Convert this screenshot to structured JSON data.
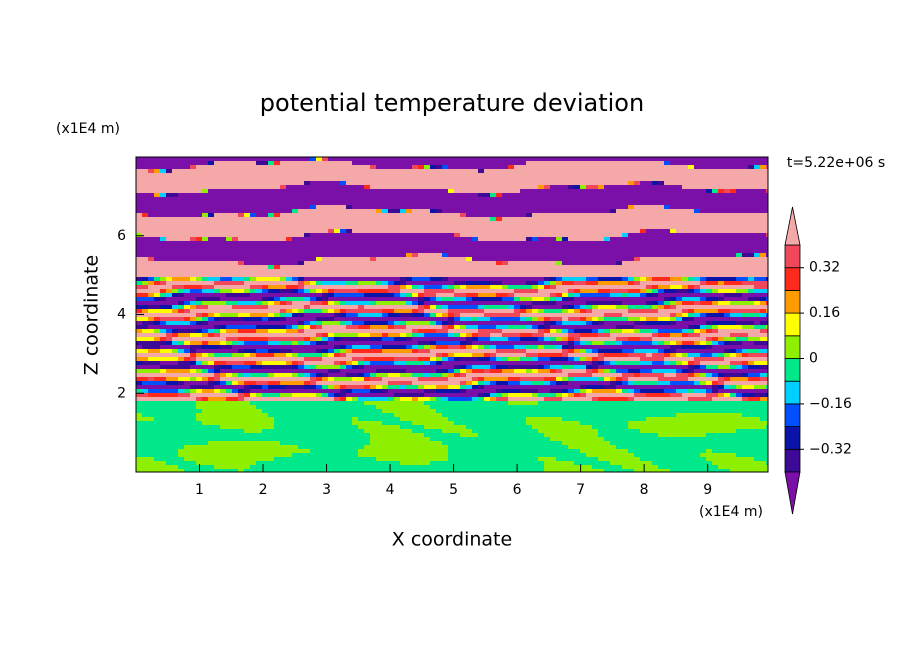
{
  "chart_data": {
    "type": "contour",
    "title": "potential temperature deviation",
    "x_label": "X coordinate",
    "y_label": "Z coordinate",
    "x_unit": "(x1E4 m)",
    "y_unit": "(x1E4 m)",
    "annotation": "t=5.22e+06 s",
    "xlim": [
      0,
      9.95
    ],
    "ylim": [
      0,
      8
    ],
    "xticks": [
      1,
      2,
      3,
      4,
      5,
      6,
      7,
      8,
      9
    ],
    "yticks": [
      2,
      4,
      6
    ],
    "colorbar": {
      "levels": [
        -0.4,
        -0.32,
        -0.24,
        -0.16,
        -0.08,
        0,
        0.08,
        0.16,
        0.24,
        0.32,
        0.4
      ],
      "colors": [
        "#7a10a8",
        "#3c0a96",
        "#0a14a8",
        "#0050ff",
        "#00d0ff",
        "#00e88a",
        "#8ef000",
        "#ffff00",
        "#ff9a00",
        "#ff2a1e",
        "#f0485a",
        "#f4a8a8"
      ],
      "ticks": [
        {
          "value": -0.32,
          "label": "−0.32"
        },
        {
          "value": -0.16,
          "label": "−0.16"
        },
        0,
        0.16,
        0.32
      ]
    }
  }
}
